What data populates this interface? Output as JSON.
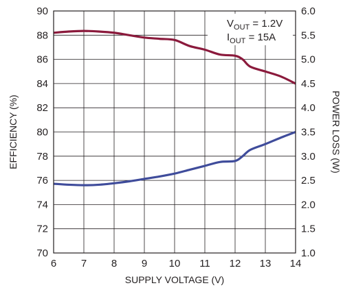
{
  "chart_data": {
    "type": "line",
    "xlabel": "SUPPLY VOLTAGE (V)",
    "ylabel_left": "EFFICIENCY (%)",
    "ylabel_right": "POWER LOSS (W)",
    "xlim": [
      6,
      14
    ],
    "ylim_left": [
      70,
      90
    ],
    "ylim_right": [
      1.0,
      6.0
    ],
    "x_ticks": [
      "6",
      "7",
      "8",
      "9",
      "10",
      "11",
      "12",
      "13",
      "14"
    ],
    "y_ticks_left": [
      "70",
      "72",
      "74",
      "76",
      "78",
      "80",
      "82",
      "84",
      "86",
      "88",
      "90"
    ],
    "y_ticks_right": [
      "1.0",
      "1.5",
      "2.0",
      "2.5",
      "3.0",
      "3.5",
      "4.0",
      "4.5",
      "5.0",
      "5.5",
      "6.0"
    ],
    "grid": true,
    "annotation": {
      "line1_main": "V",
      "line1_sub": "OUT",
      "line1_rest": " = 1.2V",
      "line2_main": "I",
      "line2_sub": "OUT",
      "line2_rest": " = 15A"
    },
    "series": [
      {
        "axis": "left",
        "color": "#8b1a3c",
        "points": [
          [
            6,
            88.2
          ],
          [
            6.5,
            88.3
          ],
          [
            7,
            88.35
          ],
          [
            7.5,
            88.3
          ],
          [
            8,
            88.2
          ],
          [
            8.5,
            88.0
          ],
          [
            9,
            87.8
          ],
          [
            9.5,
            87.7
          ],
          [
            10,
            87.6
          ],
          [
            10.5,
            87.1
          ],
          [
            11,
            86.8
          ],
          [
            11.5,
            86.4
          ],
          [
            12,
            86.3
          ],
          [
            12.25,
            86.0
          ],
          [
            12.5,
            85.4
          ],
          [
            13,
            85.0
          ],
          [
            13.5,
            84.6
          ],
          [
            14,
            84.0
          ]
        ]
      },
      {
        "axis": "right",
        "color": "#3f4c9b",
        "points": [
          [
            6,
            2.43
          ],
          [
            6.5,
            2.41
          ],
          [
            7,
            2.4
          ],
          [
            7.5,
            2.41
          ],
          [
            8,
            2.44
          ],
          [
            8.5,
            2.48
          ],
          [
            9,
            2.53
          ],
          [
            9.5,
            2.58
          ],
          [
            10,
            2.64
          ],
          [
            10.5,
            2.72
          ],
          [
            11,
            2.8
          ],
          [
            11.5,
            2.88
          ],
          [
            12,
            2.9
          ],
          [
            12.25,
            3.0
          ],
          [
            12.5,
            3.13
          ],
          [
            13,
            3.25
          ],
          [
            13.5,
            3.38
          ],
          [
            14,
            3.5
          ]
        ]
      }
    ]
  }
}
